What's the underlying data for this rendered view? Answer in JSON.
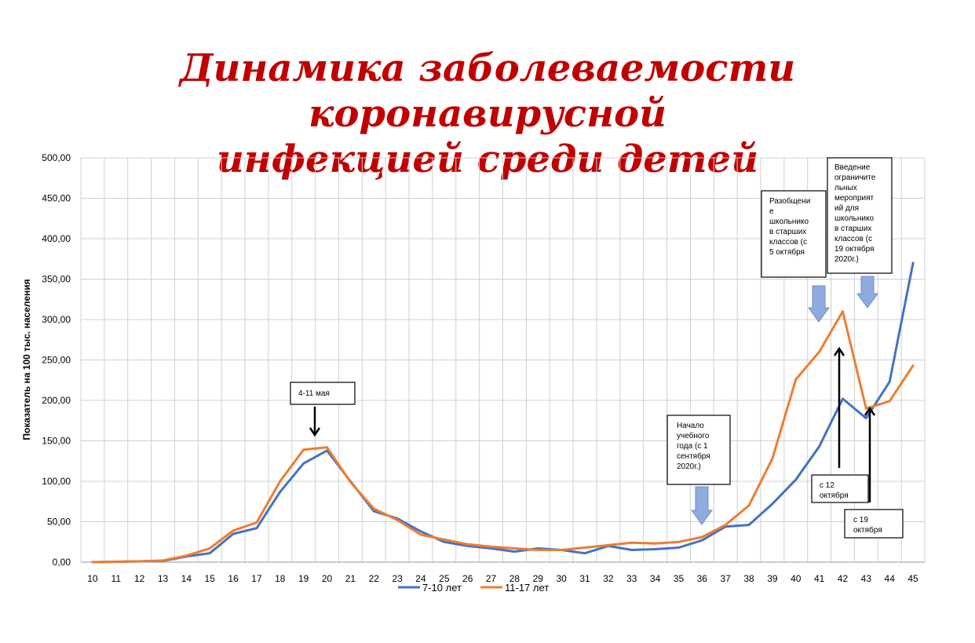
{
  "title_line1": "Динамика заболеваемости коронавирусной",
  "title_line2": "инфекцией среди детей",
  "chart_data": {
    "type": "line",
    "ylabel": "Показатель на 100 тыс. населения",
    "xlabel": "",
    "ylim": [
      0,
      500
    ],
    "yticks": [
      "0,00",
      "50,00",
      "100,00",
      "150,00",
      "200,00",
      "250,00",
      "300,00",
      "350,00",
      "400,00",
      "450,00",
      "500,00"
    ],
    "x": [
      10,
      11,
      12,
      13,
      14,
      15,
      16,
      17,
      18,
      19,
      20,
      21,
      22,
      23,
      24,
      25,
      26,
      27,
      28,
      29,
      30,
      31,
      32,
      33,
      34,
      35,
      36,
      37,
      38,
      39,
      40,
      41,
      42,
      43,
      44,
      45
    ],
    "grid": true,
    "legend_position": "bottom",
    "series": [
      {
        "name": "7-10 лет",
        "color": "#4472c4",
        "values": [
          0,
          0.5,
          1,
          1.5,
          7,
          11,
          35,
          42,
          87,
          122,
          138,
          100,
          63,
          54,
          38,
          25,
          20,
          17,
          13,
          17,
          15,
          11,
          20,
          15,
          16,
          18,
          27,
          44,
          46,
          72,
          102,
          143,
          202,
          178,
          223,
          370
        ]
      },
      {
        "name": "11-17 лет",
        "color": "#ed7d31",
        "values": [
          0,
          0.5,
          1,
          2,
          8,
          17,
          39,
          49,
          100,
          139,
          142,
          99,
          66,
          52,
          34,
          28,
          22,
          19,
          17,
          15,
          15,
          18,
          21,
          24,
          23,
          25,
          31,
          46,
          70,
          128,
          226,
          260,
          310,
          190,
          199,
          243
        ]
      }
    ],
    "annotations": [
      {
        "id": "may",
        "lines": [
          "4-11 мая"
        ]
      },
      {
        "id": "school-start",
        "lines": [
          "Начало",
          "учебного",
          "года (с 1",
          "сентября",
          "2020г.)"
        ]
      },
      {
        "id": "separation",
        "lines": [
          "Разобщени",
          "е",
          "школьнико",
          "в старших",
          "классов (с",
          "5 октября"
        ]
      },
      {
        "id": "restrictions",
        "lines": [
          "Введение",
          "ограничите",
          "льных",
          "мероприят",
          "ий для",
          "школьнико",
          "в старших",
          "классов (с",
          "19 октября",
          "2020г.)"
        ]
      },
      {
        "id": "oct12",
        "lines": [
          "с 12",
          "октября"
        ]
      },
      {
        "id": "oct19",
        "lines": [
          "с 19",
          "октября"
        ]
      }
    ]
  }
}
